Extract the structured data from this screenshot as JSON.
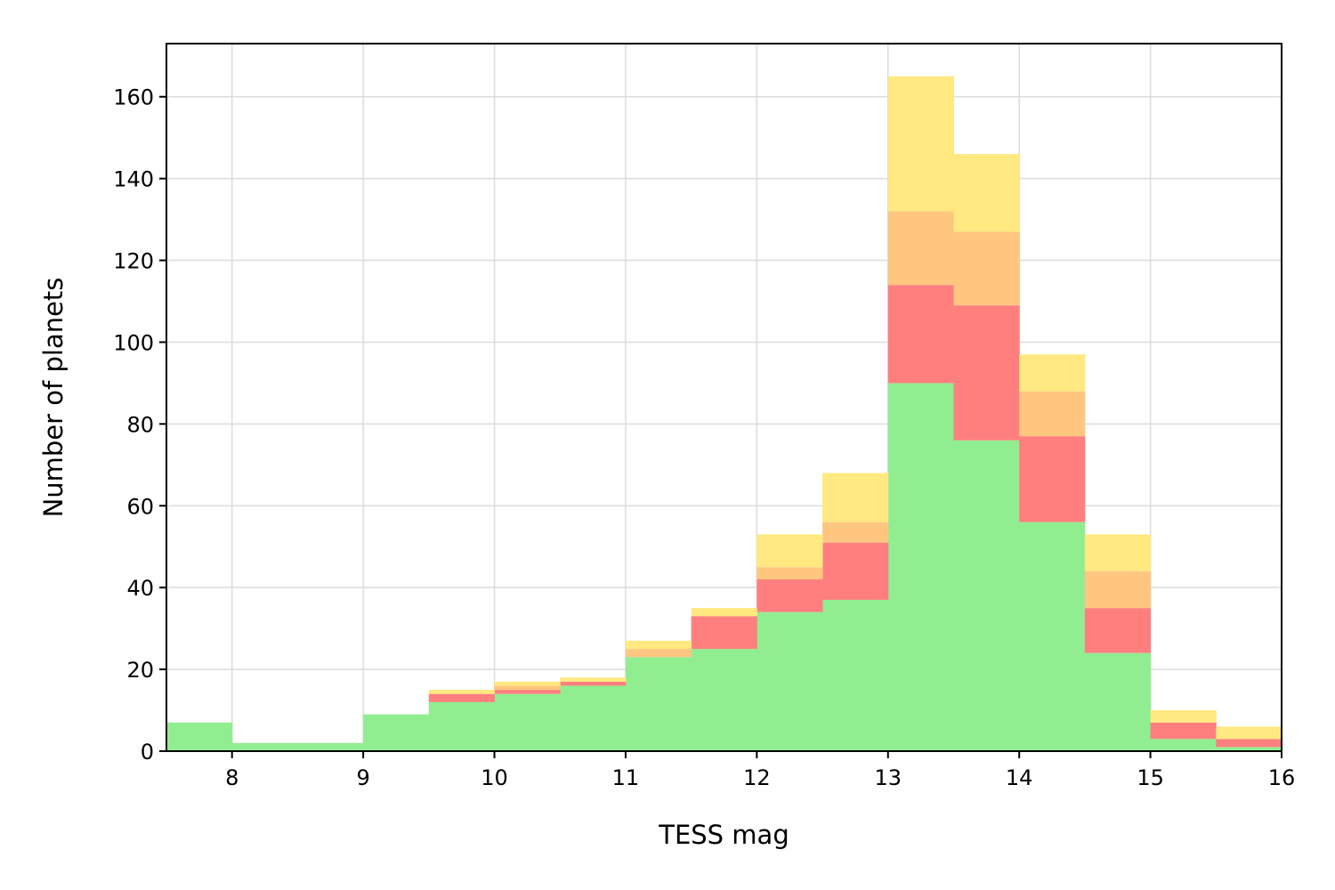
{
  "chart_data": {
    "type": "bar",
    "stacked": true,
    "histogram": true,
    "xlabel": "TESS mag",
    "ylabel": "Number of planets",
    "xlim": [
      7.5,
      16
    ],
    "ylim": [
      0,
      173
    ],
    "grid": true,
    "legend": "none",
    "xticks": [
      8,
      9,
      10,
      11,
      12,
      13,
      14,
      15,
      16
    ],
    "yticks": [
      0,
      20,
      40,
      60,
      80,
      100,
      120,
      140,
      160
    ],
    "bin_edges": [
      7.5,
      8.0,
      8.5,
      9.0,
      9.5,
      10.0,
      10.5,
      11.0,
      11.5,
      12.0,
      12.5,
      13.0,
      13.5,
      14.0,
      14.5,
      15.0,
      15.5,
      16.0
    ],
    "series": [
      {
        "color": "#90ee90",
        "values": [
          7,
          2,
          2,
          9,
          12,
          14,
          16,
          23,
          25,
          34,
          37,
          90,
          76,
          56,
          24,
          3,
          1
        ]
      },
      {
        "color": "#ff7f7f",
        "values": [
          0,
          0,
          0,
          0,
          2,
          1,
          1,
          0,
          8,
          8,
          14,
          24,
          33,
          21,
          11,
          4,
          2
        ]
      },
      {
        "color": "#ffc680",
        "values": [
          0,
          0,
          0,
          0,
          0,
          1,
          0,
          2,
          0,
          3,
          5,
          18,
          18,
          11,
          9,
          0,
          0
        ]
      },
      {
        "color": "#ffe980",
        "values": [
          0,
          0,
          0,
          0,
          1,
          1,
          1,
          2,
          2,
          8,
          12,
          33,
          19,
          9,
          9,
          3,
          3
        ]
      }
    ]
  }
}
